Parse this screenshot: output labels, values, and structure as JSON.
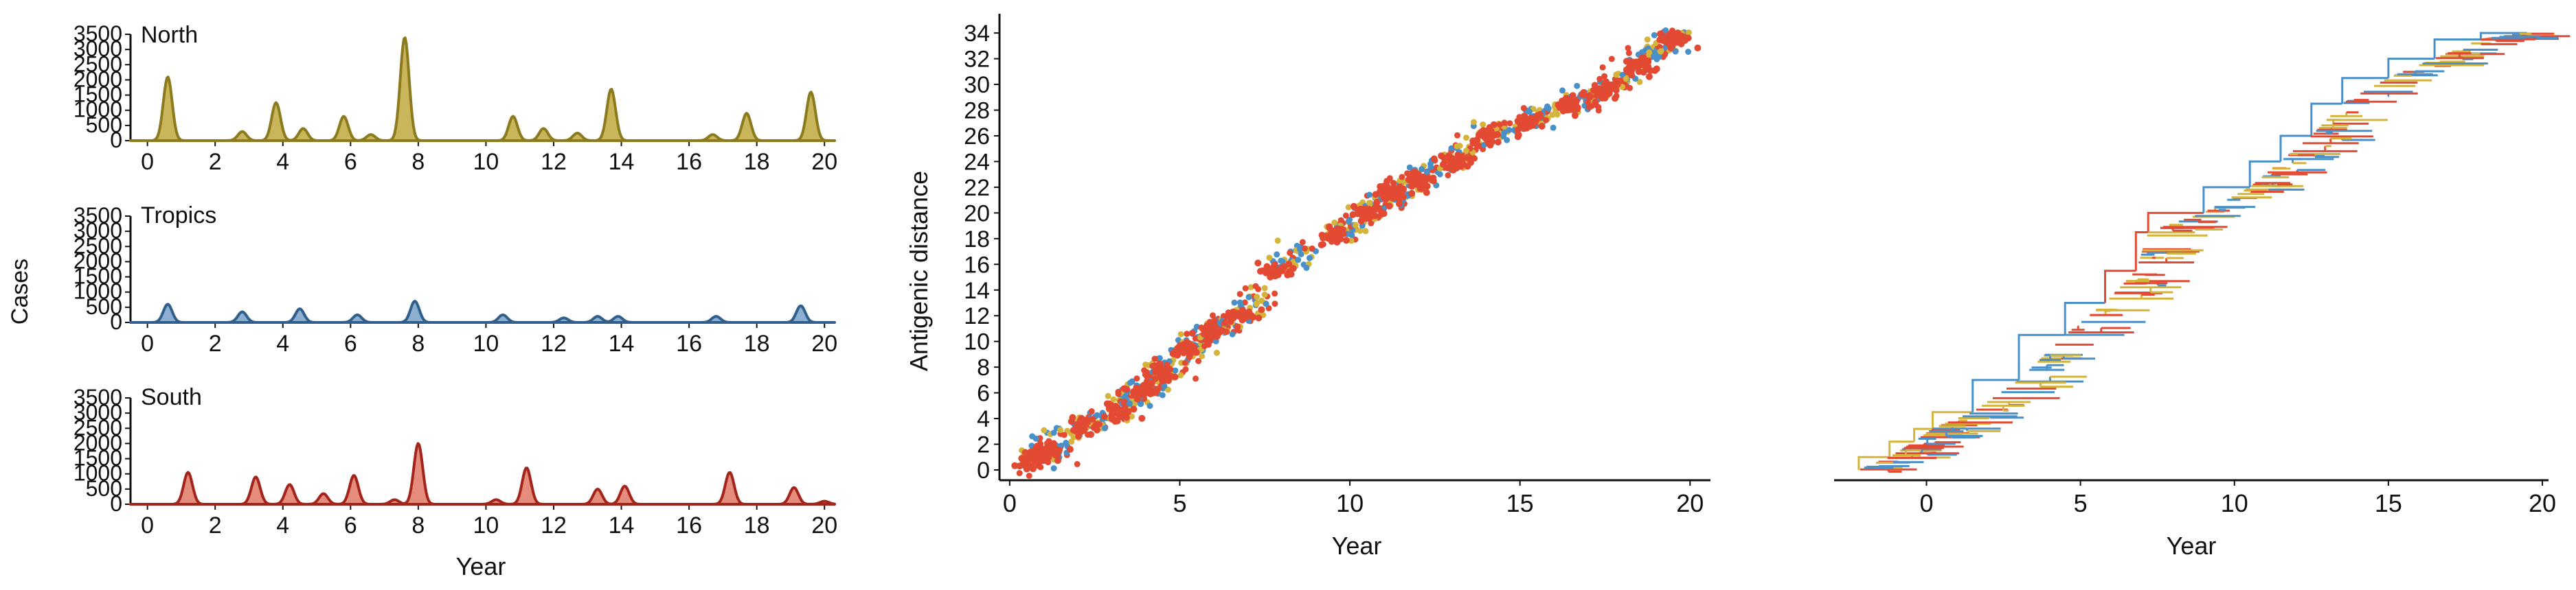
{
  "colors": {
    "north": "#8c7a1e",
    "north_fill": "#c9b65a",
    "tropics": "#2f5f8a",
    "tropics_fill": "#8db0d2",
    "south": "#a3241b",
    "south_fill": "#e58c7d",
    "pt_blue": "#4a90c8",
    "pt_yellow": "#d4b43a",
    "pt_red": "#e34a33"
  },
  "left_panel": {
    "ylabel": "Cases",
    "xlabel": "Year",
    "subplots": [
      {
        "title": "North",
        "color_key": "north",
        "yticks": [
          "3500",
          "3000",
          "2500",
          "2000",
          "1500",
          "1000",
          "500",
          "0"
        ],
        "xticks": [
          "0",
          "2",
          "4",
          "6",
          "8",
          "10",
          "12",
          "14",
          "16",
          "18",
          "20"
        ]
      },
      {
        "title": "Tropics",
        "color_key": "tropics",
        "yticks": [
          "3500",
          "3000",
          "2500",
          "2000",
          "1500",
          "1000",
          "500",
          "0"
        ],
        "xticks": [
          "0",
          "2",
          "4",
          "6",
          "8",
          "10",
          "12",
          "14",
          "16",
          "18",
          "20"
        ]
      },
      {
        "title": "South",
        "color_key": "south",
        "yticks": [
          "3500",
          "3000",
          "2500",
          "2000",
          "1500",
          "1000",
          "500",
          "0"
        ],
        "xticks": [
          "0",
          "2",
          "4",
          "6",
          "8",
          "10",
          "12",
          "14",
          "16",
          "18",
          "20"
        ]
      }
    ]
  },
  "middle_panel": {
    "xlabel": "Year",
    "ylabel": "Antigenic distance",
    "xticks": [
      "0",
      "5",
      "10",
      "15",
      "20"
    ],
    "yticks": [
      "0",
      "2",
      "4",
      "6",
      "8",
      "10",
      "12",
      "14",
      "16",
      "18",
      "20",
      "22",
      "24",
      "26",
      "28",
      "30",
      "32",
      "34"
    ]
  },
  "right_panel": {
    "xlabel": "Year",
    "xticks": [
      "0",
      "5",
      "10",
      "15",
      "20"
    ]
  },
  "chart_data": [
    {
      "type": "area",
      "title": "North",
      "xlabel": "Year",
      "ylabel": "Cases",
      "xlim": [
        -0.5,
        20.3
      ],
      "ylim": [
        0,
        3500
      ],
      "peaks": [
        {
          "x": 0.6,
          "y": 2100
        },
        {
          "x": 2.8,
          "y": 300
        },
        {
          "x": 3.8,
          "y": 1250
        },
        {
          "x": 4.6,
          "y": 400
        },
        {
          "x": 5.8,
          "y": 800
        },
        {
          "x": 6.6,
          "y": 200
        },
        {
          "x": 7.6,
          "y": 3400
        },
        {
          "x": 10.8,
          "y": 800
        },
        {
          "x": 11.7,
          "y": 400
        },
        {
          "x": 12.7,
          "y": 250
        },
        {
          "x": 13.7,
          "y": 1700
        },
        {
          "x": 16.7,
          "y": 200
        },
        {
          "x": 17.7,
          "y": 900
        },
        {
          "x": 19.6,
          "y": 1600
        }
      ]
    },
    {
      "type": "area",
      "title": "Tropics",
      "xlabel": "Year",
      "ylabel": "Cases",
      "xlim": [
        -0.5,
        20.3
      ],
      "ylim": [
        0,
        3500
      ],
      "peaks": [
        {
          "x": 0.6,
          "y": 600
        },
        {
          "x": 2.8,
          "y": 350
        },
        {
          "x": 4.5,
          "y": 450
        },
        {
          "x": 6.2,
          "y": 250
        },
        {
          "x": 7.9,
          "y": 700
        },
        {
          "x": 10.5,
          "y": 250
        },
        {
          "x": 12.3,
          "y": 150
        },
        {
          "x": 13.3,
          "y": 200
        },
        {
          "x": 13.9,
          "y": 200
        },
        {
          "x": 16.8,
          "y": 200
        },
        {
          "x": 19.3,
          "y": 550
        }
      ]
    },
    {
      "type": "area",
      "title": "South",
      "xlabel": "Year",
      "ylabel": "Cases",
      "xlim": [
        -0.5,
        20.3
      ],
      "ylim": [
        0,
        3500
      ],
      "peaks": [
        {
          "x": 1.2,
          "y": 1050
        },
        {
          "x": 3.2,
          "y": 900
        },
        {
          "x": 4.2,
          "y": 650
        },
        {
          "x": 5.2,
          "y": 350
        },
        {
          "x": 6.1,
          "y": 950
        },
        {
          "x": 7.3,
          "y": 150
        },
        {
          "x": 8.0,
          "y": 2000
        },
        {
          "x": 10.3,
          "y": 150
        },
        {
          "x": 11.2,
          "y": 1200
        },
        {
          "x": 13.3,
          "y": 500
        },
        {
          "x": 14.1,
          "y": 600
        },
        {
          "x": 17.2,
          "y": 1050
        },
        {
          "x": 19.1,
          "y": 550
        },
        {
          "x": 20.0,
          "y": 100
        }
      ]
    },
    {
      "type": "scatter",
      "xlabel": "Year",
      "ylabel": "Antigenic distance",
      "xlim": [
        -0.3,
        20.6
      ],
      "ylim": [
        -0.8,
        35.5
      ],
      "clusters": [
        {
          "x": 0.7,
          "y": 0.8
        },
        {
          "x": 1.1,
          "y": 1.5
        },
        {
          "x": 2.2,
          "y": 3.5
        },
        {
          "x": 3.2,
          "y": 4.5
        },
        {
          "x": 3.9,
          "y": 6.2
        },
        {
          "x": 4.5,
          "y": 7.5
        },
        {
          "x": 5.2,
          "y": 9.5
        },
        {
          "x": 6.0,
          "y": 10.8
        },
        {
          "x": 6.8,
          "y": 12.0
        },
        {
          "x": 7.8,
          "y": 15.5
        },
        {
          "x": 9.5,
          "y": 18.2
        },
        {
          "x": 10.5,
          "y": 20.0
        },
        {
          "x": 11.2,
          "y": 21.5
        },
        {
          "x": 12.0,
          "y": 22.5
        },
        {
          "x": 13.0,
          "y": 24.0
        },
        {
          "x": 14.0,
          "y": 26.0
        },
        {
          "x": 15.2,
          "y": 27.0
        },
        {
          "x": 16.5,
          "y": 28.5
        },
        {
          "x": 17.5,
          "y": 29.5
        },
        {
          "x": 18.5,
          "y": 31.5
        },
        {
          "x": 19.5,
          "y": 33.5
        }
      ]
    },
    {
      "type": "line",
      "xlabel": "Year",
      "xlim": [
        -3.0,
        20.2
      ],
      "ylim": [
        -0.8,
        35.5
      ],
      "trunk": [
        {
          "x": -2.2,
          "y": 0.0
        },
        {
          "x": -1.2,
          "y": 1.0
        },
        {
          "x": -0.4,
          "y": 2.2
        },
        {
          "x": 0.2,
          "y": 3.2
        },
        {
          "x": 1.5,
          "y": 4.5
        },
        {
          "x": 3.0,
          "y": 7.0
        },
        {
          "x": 4.5,
          "y": 10.5
        },
        {
          "x": 5.8,
          "y": 13.0
        },
        {
          "x": 6.8,
          "y": 15.5
        },
        {
          "x": 7.2,
          "y": 18.5
        },
        {
          "x": 9.0,
          "y": 20.0
        },
        {
          "x": 10.5,
          "y": 22.0
        },
        {
          "x": 11.5,
          "y": 24.0
        },
        {
          "x": 12.5,
          "y": 26.0
        },
        {
          "x": 13.5,
          "y": 28.5
        },
        {
          "x": 15.0,
          "y": 30.5
        },
        {
          "x": 16.5,
          "y": 32.0
        },
        {
          "x": 18.0,
          "y": 33.5
        },
        {
          "x": 19.5,
          "y": 34.0
        }
      ]
    }
  ]
}
